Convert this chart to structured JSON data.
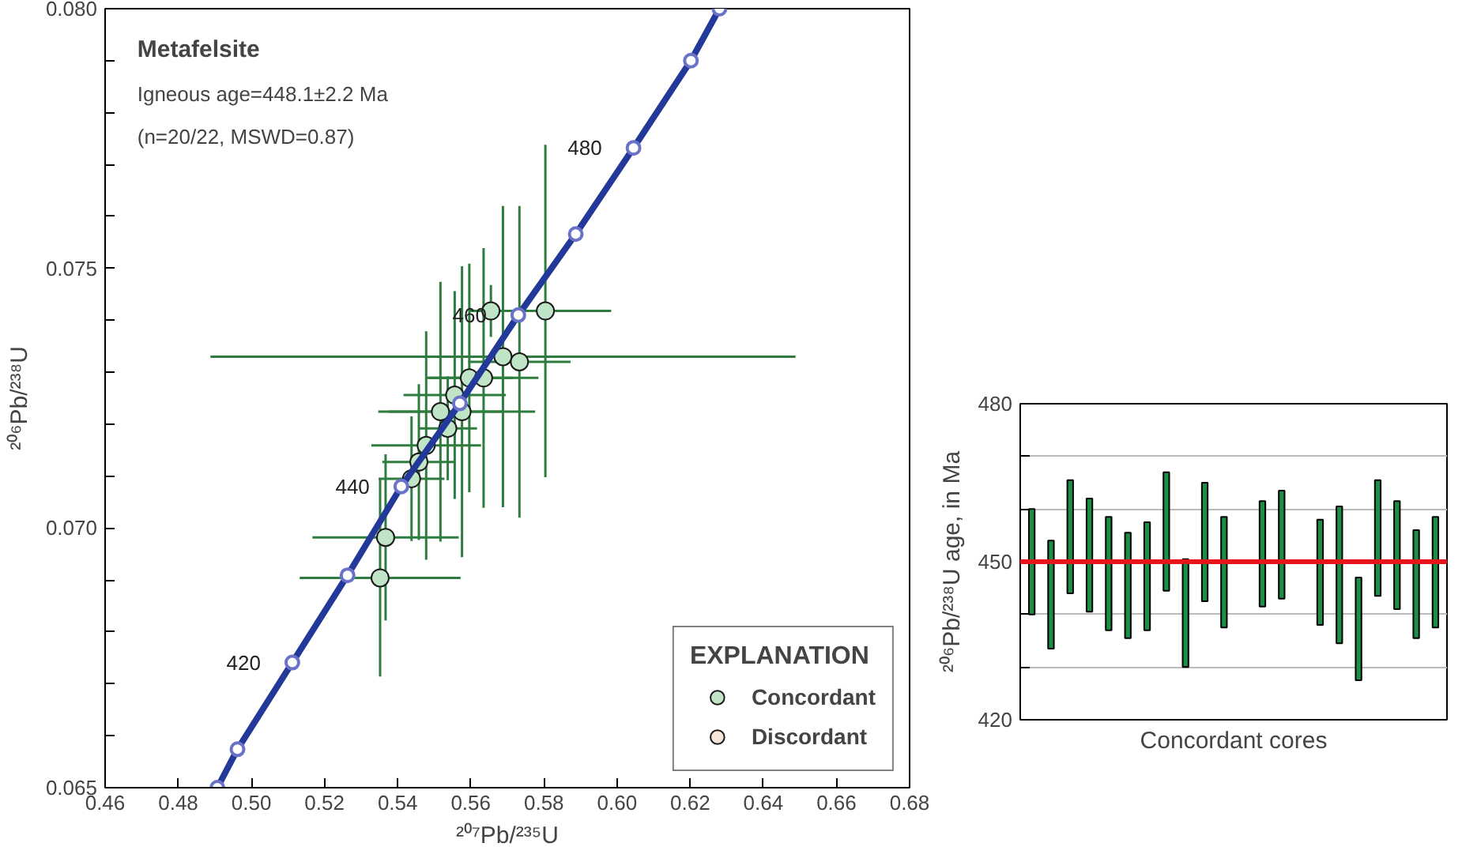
{
  "chart_data": [
    {
      "type": "scatter",
      "title": "Metafelsite",
      "annotations": [
        "Igneous age=448.1±2.2 Ma",
        "(n=20/22, MSWD=0.87)",
        {
          "text": "420",
          "x": 0.5112,
          "y": 0.06741
        },
        {
          "text": "440",
          "x": 0.541,
          "y": 0.0708
        },
        {
          "text": "460",
          "x": 0.573,
          "y": 0.0741
        },
        {
          "text": "480",
          "x": 0.6045,
          "y": 0.07732
        }
      ],
      "xlabel": "²⁰⁷Pb/²³⁵U",
      "ylabel": "²⁰⁶Pb/²³⁸U",
      "legend_title": "EXPLANATION",
      "legend": "bottom right",
      "xlim": [
        0.46,
        0.68
      ],
      "ylim": [
        0.065,
        0.08
      ],
      "xticks": [
        {
          "value": 0.46,
          "label": "0.46"
        },
        {
          "value": 0.48,
          "label": "0.48"
        },
        {
          "value": 0.5,
          "label": "0.50"
        },
        {
          "value": 0.52,
          "label": "0.52"
        },
        {
          "value": 0.54,
          "label": "0.54"
        },
        {
          "value": 0.56,
          "label": "0.56"
        },
        {
          "value": 0.58,
          "label": "0.58"
        },
        {
          "value": 0.6,
          "label": "0.60"
        },
        {
          "value": 0.62,
          "label": "0.62"
        },
        {
          "value": 0.64,
          "label": "0.64"
        },
        {
          "value": 0.66,
          "label": "0.66"
        },
        {
          "value": 0.68,
          "label": "0.68"
        }
      ],
      "yticks": [
        {
          "value": 0.065,
          "label": "0.065"
        },
        {
          "value": 0.066,
          "label": null
        },
        {
          "value": 0.067,
          "label": null
        },
        {
          "value": 0.068,
          "label": null
        },
        {
          "value": 0.069,
          "label": null
        },
        {
          "value": 0.07,
          "label": "0.070"
        },
        {
          "value": 0.071,
          "label": null
        },
        {
          "value": 0.072,
          "label": null
        },
        {
          "value": 0.073,
          "label": null
        },
        {
          "value": 0.074,
          "label": null
        },
        {
          "value": 0.075,
          "label": "0.075"
        },
        {
          "value": 0.076,
          "label": null
        },
        {
          "value": 0.077,
          "label": null
        },
        {
          "value": 0.078,
          "label": null
        },
        {
          "value": 0.079,
          "label": null
        },
        {
          "value": 0.08,
          "label": "0.080"
        }
      ],
      "series": [
        {
          "name": "Concordant",
          "color": "#bfe5c6",
          "x": [
            0.5688,
            0.5804,
            0.5352,
            0.5367,
            0.5655,
            0.5733,
            0.5517,
            0.5478,
            0.5556,
            0.5596,
            0.5458,
            0.5576,
            0.5438,
            0.5635,
            0.5537
          ],
          "values": [
            0.0733,
            0.07418,
            0.06904,
            0.06982,
            0.07418,
            0.0732,
            0.07224,
            0.07159,
            0.07256,
            0.07289,
            0.07127,
            0.07224,
            0.07095,
            0.07289,
            0.07192
          ],
          "xerrors": [
            0.08,
            0.018,
            0.022,
            0.02,
            0.006,
            0.014,
            0.017,
            0.015,
            0.014,
            0.012,
            0.01,
            0.02,
            0.009,
            0.015,
            0.008
          ],
          "errors": [
            0.0029,
            0.0032,
            0.0019,
            0.0016,
            0.0005,
            0.003,
            0.0025,
            0.0022,
            0.002,
            0.0022,
            0.0015,
            0.0028,
            0.0012,
            0.0025,
            0.001
          ]
        },
        {
          "name": "Discordant",
          "color": "#f6e6da"
        },
        {
          "type": "line",
          "color": "#23399a",
          "marker": "circle",
          "x": [
            0.4907,
            0.4962,
            0.5112,
            0.5263,
            0.541,
            0.557,
            0.573,
            0.5887,
            0.6045,
            0.6202,
            0.628
          ],
          "values": [
            0.065,
            0.06574,
            0.06741,
            0.06909,
            0.0708,
            0.0724,
            0.0741,
            0.07566,
            0.07732,
            0.079,
            0.08
          ]
        }
      ]
    },
    {
      "type": "bar",
      "categories": [
        null,
        null,
        null,
        null,
        null,
        null,
        null,
        null,
        null,
        null,
        null,
        null,
        null,
        null,
        null,
        null,
        null,
        null,
        null,
        null,
        null,
        null
      ],
      "color": "#1a8f45",
      "xlabel": "Concordant cores",
      "ylabel": "²⁰⁶Pb/²³⁸U age, in Ma",
      "tick_labels": "y",
      "grid": "y",
      "base": [
        440,
        433.5,
        444,
        440.5,
        437,
        435.5,
        437,
        444.5,
        430,
        442.5,
        437.5,
        null,
        441.5,
        443,
        null,
        438,
        434.5,
        427.5,
        443.5,
        441,
        435.5,
        437.5
      ],
      "values": [
        20,
        20.5,
        21.5,
        21.5,
        21.5,
        20,
        20.5,
        22.5,
        20.5,
        22.5,
        21,
        null,
        20,
        20.5,
        null,
        20,
        26,
        19.5,
        22,
        20.5,
        20.5,
        21
      ],
      "ylim": [
        420,
        480
      ],
      "yticks": [
        420,
        {
          "value": 430,
          "label": null
        },
        {
          "value": 440,
          "label": null
        },
        450,
        {
          "value": 460,
          "label": null
        },
        {
          "value": 470,
          "label": null
        },
        480
      ],
      "ref_lines": [
        {
          "axis": "y",
          "value": 450,
          "label": null,
          "color": "#e8141c"
        }
      ]
    }
  ]
}
